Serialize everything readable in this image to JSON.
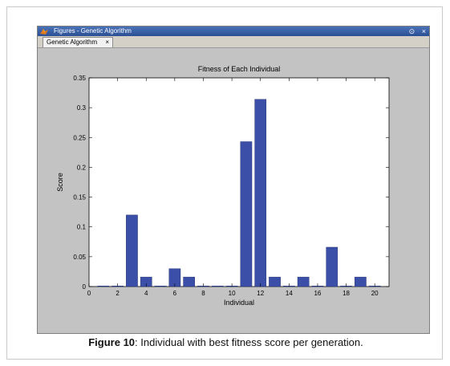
{
  "window": {
    "title": "Figures - Genetic Algorithm",
    "icon": "matlab-icon",
    "controls": [
      "⊙",
      "×"
    ]
  },
  "tab": {
    "label": "Genetic Algorithm",
    "close": "×"
  },
  "caption": {
    "label": "Figure 10",
    "text": ": Individual with best fitness score per generation."
  },
  "chart_data": {
    "type": "bar",
    "title": "Fitness of Each Individual",
    "xlabel": "Individual",
    "ylabel": "Score",
    "x": [
      1,
      2,
      3,
      4,
      5,
      6,
      7,
      8,
      9,
      10,
      11,
      12,
      13,
      14,
      15,
      16,
      17,
      18,
      19,
      20
    ],
    "values": [
      0.001,
      0.001,
      0.12,
      0.016,
      0.001,
      0.03,
      0.016,
      0.001,
      0.001,
      0.001,
      0.243,
      0.314,
      0.016,
      0.001,
      0.016,
      0.001,
      0.066,
      0.001,
      0.016,
      0.001
    ],
    "xlim": [
      0,
      21
    ],
    "ylim": [
      0,
      0.35
    ],
    "xticks": [
      0,
      2,
      4,
      6,
      8,
      10,
      12,
      14,
      16,
      18,
      20
    ],
    "yticks": [
      0,
      0.05,
      0.1,
      0.15,
      0.2,
      0.25,
      0.3,
      0.35
    ],
    "ytick_labels": [
      "0",
      "0.05",
      "0.1",
      "0.15",
      "0.2",
      "0.25",
      "0.3",
      "0.35"
    ],
    "bar_color": "#3b4fa8",
    "grid": false
  }
}
